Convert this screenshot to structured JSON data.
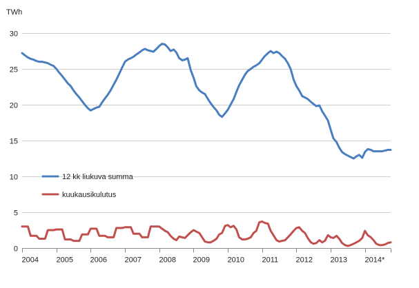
{
  "chart_data": {
    "type": "line",
    "title": "",
    "unit_label": "TWh",
    "xlabel": "",
    "ylabel": "",
    "xlim": [
      2004,
      2014.75
    ],
    "ylim": [
      0,
      30
    ],
    "y_ticks": [
      0,
      5,
      10,
      15,
      20,
      25,
      30
    ],
    "x_tick_labels": [
      "2004",
      "2005",
      "2006",
      "2007",
      "2008",
      "2009",
      "2010",
      "2011",
      "2012",
      "2013",
      "2014*"
    ],
    "grid": "horizontal",
    "legend_position": "left-middle",
    "series": [
      {
        "name": "12 kk liukuva summa",
        "color": "#4a7fbf",
        "points": [
          [
            2004.0,
            27.2
          ],
          [
            2004.08,
            26.9
          ],
          [
            2004.17,
            26.6
          ],
          [
            2004.25,
            26.4
          ],
          [
            2004.33,
            26.3
          ],
          [
            2004.42,
            26.1
          ],
          [
            2004.5,
            26.0
          ],
          [
            2004.58,
            26.0
          ],
          [
            2004.67,
            25.9
          ],
          [
            2004.75,
            25.8
          ],
          [
            2004.83,
            25.6
          ],
          [
            2004.92,
            25.4
          ],
          [
            2005.0,
            25.0
          ],
          [
            2005.08,
            24.5
          ],
          [
            2005.17,
            24.0
          ],
          [
            2005.25,
            23.5
          ],
          [
            2005.33,
            23.0
          ],
          [
            2005.42,
            22.6
          ],
          [
            2005.5,
            22.0
          ],
          [
            2005.58,
            21.5
          ],
          [
            2005.67,
            21.0
          ],
          [
            2005.75,
            20.5
          ],
          [
            2005.83,
            20.0
          ],
          [
            2005.92,
            19.5
          ],
          [
            2006.0,
            19.2
          ],
          [
            2006.08,
            19.4
          ],
          [
            2006.17,
            19.6
          ],
          [
            2006.25,
            19.7
          ],
          [
            2006.33,
            20.3
          ],
          [
            2006.42,
            20.9
          ],
          [
            2006.5,
            21.4
          ],
          [
            2006.58,
            22.0
          ],
          [
            2006.67,
            22.8
          ],
          [
            2006.75,
            23.5
          ],
          [
            2006.83,
            24.3
          ],
          [
            2006.92,
            25.2
          ],
          [
            2007.0,
            26.0
          ],
          [
            2007.08,
            26.3
          ],
          [
            2007.17,
            26.5
          ],
          [
            2007.25,
            26.7
          ],
          [
            2007.33,
            27.0
          ],
          [
            2007.42,
            27.3
          ],
          [
            2007.5,
            27.6
          ],
          [
            2007.58,
            27.8
          ],
          [
            2007.67,
            27.6
          ],
          [
            2007.75,
            27.5
          ],
          [
            2007.83,
            27.4
          ],
          [
            2007.92,
            27.8
          ],
          [
            2008.0,
            28.2
          ],
          [
            2008.08,
            28.5
          ],
          [
            2008.17,
            28.4
          ],
          [
            2008.25,
            28.0
          ],
          [
            2008.33,
            27.5
          ],
          [
            2008.42,
            27.7
          ],
          [
            2008.5,
            27.3
          ],
          [
            2008.58,
            26.5
          ],
          [
            2008.67,
            26.2
          ],
          [
            2008.75,
            26.3
          ],
          [
            2008.83,
            26.5
          ],
          [
            2008.92,
            24.8
          ],
          [
            2009.0,
            23.8
          ],
          [
            2009.08,
            22.6
          ],
          [
            2009.17,
            22.0
          ],
          [
            2009.25,
            21.7
          ],
          [
            2009.33,
            21.5
          ],
          [
            2009.42,
            20.8
          ],
          [
            2009.5,
            20.2
          ],
          [
            2009.58,
            19.7
          ],
          [
            2009.67,
            19.2
          ],
          [
            2009.75,
            18.6
          ],
          [
            2009.83,
            18.3
          ],
          [
            2009.92,
            18.8
          ],
          [
            2010.0,
            19.3
          ],
          [
            2010.08,
            20.0
          ],
          [
            2010.17,
            20.8
          ],
          [
            2010.25,
            21.8
          ],
          [
            2010.33,
            22.7
          ],
          [
            2010.42,
            23.5
          ],
          [
            2010.5,
            24.2
          ],
          [
            2010.58,
            24.7
          ],
          [
            2010.67,
            25.0
          ],
          [
            2010.75,
            25.3
          ],
          [
            2010.83,
            25.5
          ],
          [
            2010.92,
            25.8
          ],
          [
            2011.0,
            26.3
          ],
          [
            2011.08,
            26.8
          ],
          [
            2011.17,
            27.2
          ],
          [
            2011.25,
            27.5
          ],
          [
            2011.33,
            27.2
          ],
          [
            2011.42,
            27.4
          ],
          [
            2011.5,
            27.2
          ],
          [
            2011.58,
            26.8
          ],
          [
            2011.67,
            26.4
          ],
          [
            2011.75,
            25.8
          ],
          [
            2011.83,
            25.0
          ],
          [
            2011.92,
            23.5
          ],
          [
            2012.0,
            22.6
          ],
          [
            2012.08,
            22.0
          ],
          [
            2012.17,
            21.2
          ],
          [
            2012.25,
            21.0
          ],
          [
            2012.33,
            20.8
          ],
          [
            2012.42,
            20.4
          ],
          [
            2012.5,
            20.1
          ],
          [
            2012.58,
            19.8
          ],
          [
            2012.67,
            19.9
          ],
          [
            2012.75,
            19.1
          ],
          [
            2012.83,
            18.5
          ],
          [
            2012.92,
            17.8
          ],
          [
            2013.0,
            16.5
          ],
          [
            2013.08,
            15.3
          ],
          [
            2013.17,
            14.8
          ],
          [
            2013.25,
            14.0
          ],
          [
            2013.33,
            13.4
          ],
          [
            2013.42,
            13.1
          ],
          [
            2013.5,
            12.9
          ],
          [
            2013.58,
            12.7
          ],
          [
            2013.67,
            12.5
          ],
          [
            2013.75,
            12.8
          ],
          [
            2013.83,
            13.0
          ],
          [
            2013.92,
            12.6
          ],
          [
            2014.0,
            13.4
          ],
          [
            2014.08,
            13.8
          ],
          [
            2014.17,
            13.7
          ],
          [
            2014.25,
            13.5
          ],
          [
            2014.33,
            13.5
          ],
          [
            2014.42,
            13.5
          ],
          [
            2014.5,
            13.5
          ],
          [
            2014.58,
            13.6
          ],
          [
            2014.67,
            13.7
          ],
          [
            2014.75,
            13.7
          ]
        ]
      },
      {
        "name": "kuukausikulutus",
        "color": "#c0504d",
        "points": [
          [
            2004.0,
            3.0
          ],
          [
            2004.08,
            3.0
          ],
          [
            2004.17,
            3.0
          ],
          [
            2004.25,
            1.7
          ],
          [
            2004.33,
            1.7
          ],
          [
            2004.42,
            1.7
          ],
          [
            2004.5,
            1.3
          ],
          [
            2004.58,
            1.3
          ],
          [
            2004.67,
            1.3
          ],
          [
            2004.75,
            2.5
          ],
          [
            2004.83,
            2.5
          ],
          [
            2004.92,
            2.5
          ],
          [
            2005.0,
            2.6
          ],
          [
            2005.08,
            2.6
          ],
          [
            2005.17,
            2.6
          ],
          [
            2005.25,
            1.2
          ],
          [
            2005.33,
            1.2
          ],
          [
            2005.42,
            1.2
          ],
          [
            2005.5,
            1.0
          ],
          [
            2005.58,
            1.0
          ],
          [
            2005.67,
            1.0
          ],
          [
            2005.75,
            1.9
          ],
          [
            2005.83,
            1.9
          ],
          [
            2005.92,
            1.9
          ],
          [
            2006.0,
            2.7
          ],
          [
            2006.08,
            2.7
          ],
          [
            2006.17,
            2.7
          ],
          [
            2006.25,
            1.7
          ],
          [
            2006.33,
            1.7
          ],
          [
            2006.42,
            1.7
          ],
          [
            2006.5,
            1.5
          ],
          [
            2006.58,
            1.5
          ],
          [
            2006.67,
            1.5
          ],
          [
            2006.75,
            2.8
          ],
          [
            2006.83,
            2.8
          ],
          [
            2006.92,
            2.8
          ],
          [
            2007.0,
            2.9
          ],
          [
            2007.08,
            2.9
          ],
          [
            2007.17,
            2.9
          ],
          [
            2007.25,
            2.0
          ],
          [
            2007.33,
            2.0
          ],
          [
            2007.42,
            2.0
          ],
          [
            2007.5,
            1.5
          ],
          [
            2007.58,
            1.5
          ],
          [
            2007.67,
            1.5
          ],
          [
            2007.75,
            3.0
          ],
          [
            2007.83,
            3.0
          ],
          [
            2007.92,
            3.0
          ],
          [
            2008.0,
            3.0
          ],
          [
            2008.08,
            2.7
          ],
          [
            2008.17,
            2.4
          ],
          [
            2008.25,
            2.2
          ],
          [
            2008.33,
            1.7
          ],
          [
            2008.42,
            1.3
          ],
          [
            2008.5,
            1.1
          ],
          [
            2008.58,
            1.6
          ],
          [
            2008.67,
            1.5
          ],
          [
            2008.75,
            1.4
          ],
          [
            2008.83,
            1.8
          ],
          [
            2008.92,
            2.2
          ],
          [
            2009.0,
            2.5
          ],
          [
            2009.08,
            2.3
          ],
          [
            2009.17,
            2.1
          ],
          [
            2009.25,
            1.5
          ],
          [
            2009.33,
            0.9
          ],
          [
            2009.42,
            0.8
          ],
          [
            2009.5,
            0.8
          ],
          [
            2009.58,
            1.0
          ],
          [
            2009.67,
            1.3
          ],
          [
            2009.75,
            1.9
          ],
          [
            2009.83,
            2.1
          ],
          [
            2009.92,
            3.1
          ],
          [
            2010.0,
            3.2
          ],
          [
            2010.08,
            2.9
          ],
          [
            2010.17,
            3.1
          ],
          [
            2010.25,
            2.6
          ],
          [
            2010.33,
            1.5
          ],
          [
            2010.42,
            1.2
          ],
          [
            2010.5,
            1.2
          ],
          [
            2010.58,
            1.3
          ],
          [
            2010.67,
            1.5
          ],
          [
            2010.75,
            2.1
          ],
          [
            2010.83,
            2.4
          ],
          [
            2010.92,
            3.6
          ],
          [
            2011.0,
            3.7
          ],
          [
            2011.08,
            3.5
          ],
          [
            2011.17,
            3.4
          ],
          [
            2011.25,
            2.4
          ],
          [
            2011.33,
            1.8
          ],
          [
            2011.42,
            1.1
          ],
          [
            2011.5,
            0.9
          ],
          [
            2011.58,
            1.0
          ],
          [
            2011.67,
            1.1
          ],
          [
            2011.75,
            1.5
          ],
          [
            2011.83,
            1.9
          ],
          [
            2011.92,
            2.4
          ],
          [
            2012.0,
            2.8
          ],
          [
            2012.08,
            2.9
          ],
          [
            2012.17,
            2.4
          ],
          [
            2012.25,
            2.1
          ],
          [
            2012.33,
            1.4
          ],
          [
            2012.42,
            0.8
          ],
          [
            2012.5,
            0.6
          ],
          [
            2012.58,
            0.7
          ],
          [
            2012.67,
            1.1
          ],
          [
            2012.75,
            0.8
          ],
          [
            2012.83,
            1.0
          ],
          [
            2012.92,
            1.8
          ],
          [
            2013.0,
            1.5
          ],
          [
            2013.08,
            1.4
          ],
          [
            2013.17,
            1.7
          ],
          [
            2013.25,
            1.3
          ],
          [
            2013.33,
            0.7
          ],
          [
            2013.42,
            0.4
          ],
          [
            2013.5,
            0.3
          ],
          [
            2013.58,
            0.4
          ],
          [
            2013.67,
            0.6
          ],
          [
            2013.75,
            0.8
          ],
          [
            2013.83,
            1.0
          ],
          [
            2013.92,
            1.4
          ],
          [
            2014.0,
            2.4
          ],
          [
            2014.08,
            1.8
          ],
          [
            2014.17,
            1.5
          ],
          [
            2014.25,
            1.1
          ],
          [
            2014.33,
            0.6
          ],
          [
            2014.42,
            0.4
          ],
          [
            2014.5,
            0.4
          ],
          [
            2014.58,
            0.5
          ],
          [
            2014.67,
            0.7
          ],
          [
            2014.75,
            0.8
          ]
        ]
      }
    ]
  }
}
